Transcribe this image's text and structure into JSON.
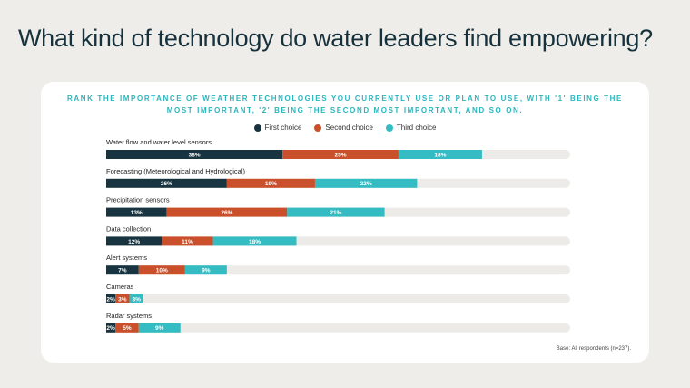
{
  "page": {
    "title": "What kind of technology do water leaders find empowering?"
  },
  "chart_data": {
    "type": "bar",
    "orientation": "horizontal",
    "stacked": true,
    "title_lines": [
      "Rank the importance of weather technologies you currently use or plan to use, with '1' being the",
      "most important, '2' being the second most important, and so on."
    ],
    "categories": [
      "Water flow and water level sensors",
      "Forecasting (Meteorological and Hydrological)",
      "Precipitation sensors",
      "Data collection",
      "Alert systems",
      "Cameras",
      "Radar systems"
    ],
    "series": [
      {
        "name": "First choice",
        "color": "#173440",
        "values": [
          38,
          26,
          13,
          12,
          7,
          2,
          2
        ]
      },
      {
        "name": "Second choice",
        "color": "#c9502a",
        "values": [
          25,
          19,
          26,
          11,
          10,
          3,
          5
        ]
      },
      {
        "name": "Third choice",
        "color": "#35bcc3",
        "values": [
          18,
          22,
          21,
          18,
          9,
          3,
          9
        ]
      }
    ],
    "value_labels": [
      [
        "38%",
        "26%",
        "13%",
        "12%",
        "7%",
        "2%",
        "2%"
      ],
      [
        "25%",
        "19%",
        "26%",
        "11%",
        "10%",
        "3%",
        "5%"
      ],
      [
        "18%",
        "22%",
        "21%",
        "18%",
        "9%",
        "3%",
        "9%"
      ]
    ],
    "xlim": [
      0,
      100
    ],
    "track_color": "#ecebe7",
    "legend_position": "top-center",
    "grid": false
  },
  "footnote": "Base: All respondents (n=237)."
}
